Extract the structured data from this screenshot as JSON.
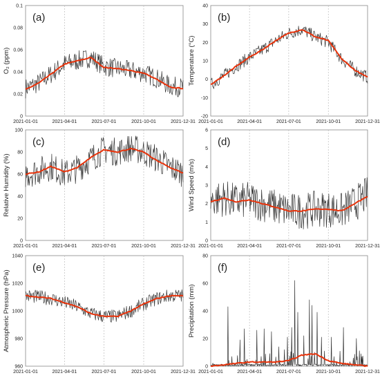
{
  "chart_data": [
    {
      "type": "line",
      "panel_label": "(a)",
      "ylabel": "O₂ (ppm)",
      "ylim": [
        0,
        0.1
      ],
      "yticks": [
        "0",
        "0.02",
        "0.04",
        "0.06",
        "0.08",
        "0.1"
      ],
      "xticks": [
        "2021-01-01",
        "2021-04-01",
        "2021-07-01",
        "2021-10-01",
        "2021-12-31"
      ],
      "grid": "vertical dashed",
      "series": [
        {
          "x": [
            "2021-01-01",
            "2021-02-01",
            "2021-03-01",
            "2021-04-01",
            "2021-05-01",
            "2021-06-01",
            "2021-07-01",
            "2021-08-01",
            "2021-09-01",
            "2021-10-01",
            "2021-11-01",
            "2021-12-01",
            "2021-12-31"
          ],
          "values": [
            0.025,
            0.03,
            0.038,
            0.047,
            0.05,
            0.053,
            0.045,
            0.043,
            0.041,
            0.039,
            0.034,
            0.027,
            0.026
          ],
          "noise": 0.009,
          "color": "#333333"
        },
        {
          "x": [
            "2021-01-01",
            "2021-02-01",
            "2021-03-01",
            "2021-04-01",
            "2021-05-01",
            "2021-06-01",
            "2021-07-01",
            "2021-08-01",
            "2021-09-01",
            "2021-10-01",
            "2021-11-01",
            "2021-12-01",
            "2021-12-31"
          ],
          "values": [
            0.024,
            0.03,
            0.038,
            0.047,
            0.05,
            0.053,
            0.044,
            0.043,
            0.041,
            0.039,
            0.033,
            0.026,
            0.025
          ],
          "color": "#e8320a"
        }
      ]
    },
    {
      "type": "line",
      "panel_label": "(b)",
      "ylabel": "Temperature (°C)",
      "ylim": [
        -20,
        40
      ],
      "yticks": [
        "-20",
        "-10",
        "0",
        "10",
        "20",
        "30",
        "40"
      ],
      "xticks": [
        "2021-01-01",
        "2021-04-01",
        "2021-07-01",
        "2021-10-01",
        "2021-12-31"
      ],
      "grid": "vertical dashed",
      "series": [
        {
          "x": [
            "2021-01-01",
            "2021-02-01",
            "2021-03-01",
            "2021-04-01",
            "2021-05-01",
            "2021-06-01",
            "2021-07-01",
            "2021-08-01",
            "2021-09-01",
            "2021-10-01",
            "2021-11-01",
            "2021-12-01",
            "2021-12-31"
          ],
          "values": [
            -3,
            2,
            7,
            12,
            16,
            21,
            25,
            27,
            23,
            20,
            11,
            5,
            1
          ],
          "noise": 3.5,
          "color": "#333333"
        },
        {
          "x": [
            "2021-01-01",
            "2021-02-01",
            "2021-03-01",
            "2021-04-01",
            "2021-05-01",
            "2021-06-01",
            "2021-07-01",
            "2021-08-01",
            "2021-09-01",
            "2021-10-01",
            "2021-11-01",
            "2021-12-01",
            "2021-12-31"
          ],
          "values": [
            -3,
            2,
            7,
            12,
            16,
            21,
            25,
            27,
            23,
            21,
            11,
            5,
            1
          ],
          "color": "#e8320a"
        }
      ]
    },
    {
      "type": "line",
      "panel_label": "(c)",
      "ylabel": "Relative Humidity (%)",
      "ylim": [
        0,
        100
      ],
      "yticks": [
        "0",
        "20",
        "40",
        "60",
        "80",
        "100"
      ],
      "xticks": [
        "2021-01-01",
        "2021-04-01",
        "2021-07-01",
        "2021-10-01",
        "2021-12-31"
      ],
      "grid": "vertical dashed",
      "series": [
        {
          "x": [
            "2021-01-01",
            "2021-02-01",
            "2021-03-01",
            "2021-04-01",
            "2021-05-01",
            "2021-06-01",
            "2021-07-01",
            "2021-08-01",
            "2021-09-01",
            "2021-10-01",
            "2021-11-01",
            "2021-12-01",
            "2021-12-31"
          ],
          "values": [
            60,
            63,
            67,
            60,
            65,
            74,
            82,
            80,
            84,
            80,
            74,
            66,
            61
          ],
          "noise": 13,
          "color": "#333333"
        },
        {
          "x": [
            "2021-01-01",
            "2021-02-01",
            "2021-03-01",
            "2021-04-01",
            "2021-05-01",
            "2021-06-01",
            "2021-07-01",
            "2021-08-01",
            "2021-09-01",
            "2021-10-01",
            "2021-11-01",
            "2021-12-01",
            "2021-12-31"
          ],
          "values": [
            60,
            62,
            67,
            62,
            66,
            75,
            82,
            80,
            83,
            80,
            72,
            66,
            61
          ],
          "color": "#e8320a"
        }
      ]
    },
    {
      "type": "line",
      "panel_label": "(d)",
      "ylabel": "Wind Speed (m/s)",
      "ylim": [
        0,
        6
      ],
      "yticks": [
        "0",
        "1",
        "2",
        "3",
        "4",
        "5",
        "6"
      ],
      "xticks": [
        "2021-01-01",
        "2021-04-01",
        "2021-07-01",
        "2021-10-01",
        "2021-12-31"
      ],
      "grid": "vertical dashed",
      "series": [
        {
          "x": [
            "2021-01-01",
            "2021-02-01",
            "2021-03-01",
            "2021-04-01",
            "2021-05-01",
            "2021-06-01",
            "2021-07-01",
            "2021-08-01",
            "2021-09-01",
            "2021-10-01",
            "2021-11-01",
            "2021-12-01",
            "2021-12-31"
          ],
          "values": [
            2.2,
            2.3,
            2.1,
            2.2,
            2.0,
            1.8,
            1.6,
            1.6,
            1.7,
            1.7,
            1.6,
            2.0,
            2.5
          ],
          "noise": 1.0,
          "color": "#333333"
        },
        {
          "x": [
            "2021-01-01",
            "2021-02-01",
            "2021-03-01",
            "2021-04-01",
            "2021-05-01",
            "2021-06-01",
            "2021-07-01",
            "2021-08-01",
            "2021-09-01",
            "2021-10-01",
            "2021-11-01",
            "2021-12-01",
            "2021-12-31"
          ],
          "values": [
            2.1,
            2.3,
            2.1,
            2.2,
            2.0,
            1.8,
            1.6,
            1.6,
            1.7,
            1.7,
            1.6,
            2.0,
            2.4
          ],
          "color": "#e8320a"
        }
      ]
    },
    {
      "type": "line",
      "panel_label": "(e)",
      "ylabel": "Atmospheric Pressure (hPa)",
      "ylim": [
        960,
        1040
      ],
      "yticks": [
        "960",
        "980",
        "1000",
        "1020",
        "1040"
      ],
      "xticks": [
        "2021-01-01",
        "2021-04-01",
        "2021-07-01",
        "2021-10-01",
        "2021-12-31"
      ],
      "grid": "vertical dashed",
      "series": [
        {
          "x": [
            "2021-01-01",
            "2021-02-01",
            "2021-03-01",
            "2021-04-01",
            "2021-05-01",
            "2021-06-01",
            "2021-07-01",
            "2021-08-01",
            "2021-09-01",
            "2021-10-01",
            "2021-11-01",
            "2021-12-01",
            "2021-12-31"
          ],
          "values": [
            1011,
            1010,
            1009,
            1006,
            1003,
            998,
            996,
            996,
            1000,
            1005,
            1009,
            1011,
            1011
          ],
          "noise": 5,
          "color": "#333333"
        },
        {
          "x": [
            "2021-01-01",
            "2021-02-01",
            "2021-03-01",
            "2021-04-01",
            "2021-05-01",
            "2021-06-01",
            "2021-07-01",
            "2021-08-01",
            "2021-09-01",
            "2021-10-01",
            "2021-11-01",
            "2021-12-01",
            "2021-12-31"
          ],
          "values": [
            1011,
            1010,
            1009,
            1006,
            1003,
            998,
            996,
            996,
            1000,
            1005,
            1009,
            1011,
            1011
          ],
          "color": "#e8320a"
        }
      ]
    },
    {
      "type": "line",
      "panel_label": "(f)",
      "ylabel": "Precipitation (mm)",
      "ylim": [
        0,
        80
      ],
      "yticks": [
        "0",
        "20",
        "40",
        "60",
        "80"
      ],
      "xticks": [
        "2021-01-01",
        "2021-04-01",
        "2021-07-01",
        "2021-10-01",
        "2021-12-31"
      ],
      "grid": "vertical dashed",
      "series": [
        {
          "x": [
            "2021-01-01",
            "2021-02-01",
            "2021-03-01",
            "2021-04-01",
            "2021-05-01",
            "2021-06-01",
            "2021-07-01",
            "2021-08-01",
            "2021-09-01",
            "2021-10-01",
            "2021-11-01",
            "2021-12-01",
            "2021-12-31"
          ],
          "values": [
            0,
            1,
            2,
            3,
            3,
            3,
            4,
            8,
            6,
            3,
            2,
            1,
            0
          ],
          "spikes": [
            [
              "2021-02-10",
              43
            ],
            [
              "2021-03-10",
              19
            ],
            [
              "2021-03-20",
              27
            ],
            [
              "2021-04-18",
              26
            ],
            [
              "2021-05-05",
              27
            ],
            [
              "2021-05-22",
              25
            ],
            [
              "2021-06-08",
              14
            ],
            [
              "2021-06-28",
              21
            ],
            [
              "2021-07-08",
              28
            ],
            [
              "2021-07-15",
              62
            ],
            [
              "2021-07-22",
              39
            ],
            [
              "2021-08-05",
              22
            ],
            [
              "2021-08-18",
              48
            ],
            [
              "2021-08-24",
              44
            ],
            [
              "2021-09-05",
              39
            ],
            [
              "2021-09-15",
              21
            ],
            [
              "2021-10-08",
              21
            ],
            [
              "2021-11-05",
              28
            ],
            [
              "2021-12-05",
              20
            ]
          ],
          "color": "#333333"
        },
        {
          "x": [
            "2021-01-01",
            "2021-02-01",
            "2021-03-01",
            "2021-04-01",
            "2021-05-01",
            "2021-06-01",
            "2021-07-01",
            "2021-08-01",
            "2021-09-01",
            "2021-10-01",
            "2021-11-01",
            "2021-12-01",
            "2021-12-31"
          ],
          "values": [
            0,
            1,
            2,
            3,
            3,
            3,
            4,
            8,
            9,
            4,
            2,
            1,
            0
          ],
          "color": "#e8320a"
        }
      ]
    }
  ]
}
